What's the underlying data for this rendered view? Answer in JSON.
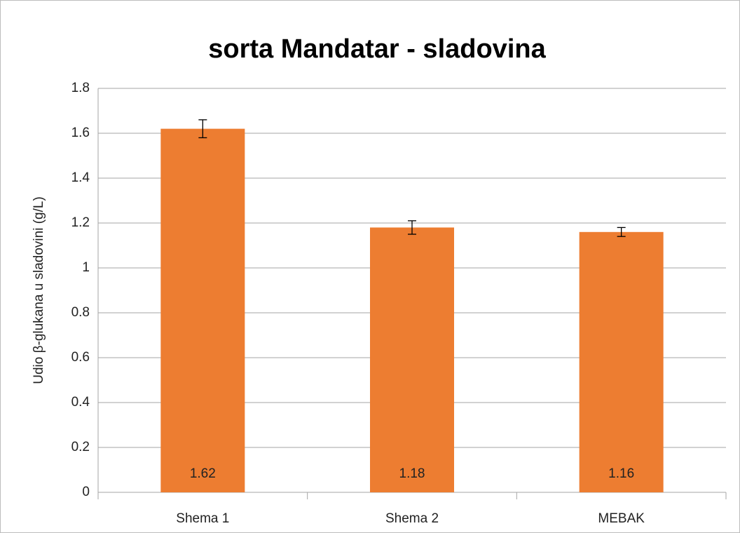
{
  "chart_data": {
    "type": "bar",
    "title": "sorta Mandatar - sladovina",
    "y_label": "Udio β-glukana u sladovini (g/L)",
    "categories": [
      "Shema 1",
      "Shema 2",
      "MEBAK"
    ],
    "values": [
      1.62,
      1.18,
      1.16
    ],
    "errors": [
      0.04,
      0.03,
      0.02
    ],
    "color": "#ed7d31",
    "ylim": [
      0,
      1.8
    ],
    "yticks": [
      0,
      0.2,
      0.4,
      0.6,
      0.8,
      1,
      1.2,
      1.4,
      1.6,
      1.8
    ],
    "grid": true
  }
}
